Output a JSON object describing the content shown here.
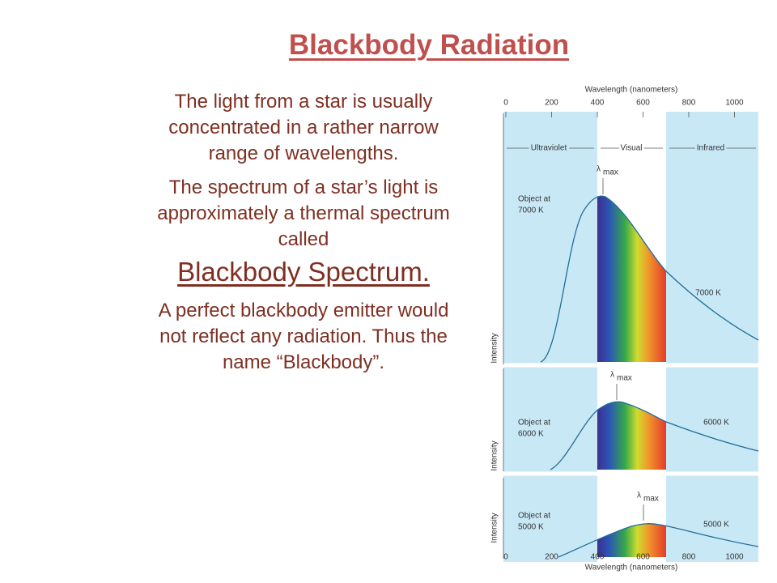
{
  "title": "Blackbody Radiation",
  "paragraphs": [
    {
      "text": "The light from a star is usually concentrated in a rather narrow range of wavelengths."
    },
    {
      "text": "The spectrum of a star’s light is approximately a thermal spectrum called",
      "emphasis": "Blackbody Spectrum."
    },
    {
      "text": "A perfect blackbody emitter would not reflect any radiation. Thus the name “Blackbody”."
    }
  ],
  "figure": {
    "axis_title": "Wavelength (nanometers)",
    "top_ticks": [
      0,
      200,
      400,
      600,
      800,
      1000
    ],
    "bottom_ticks": [
      0,
      200,
      400,
      600,
      800,
      1000
    ],
    "regions": [
      "Ultraviolet",
      "Visual",
      "Infrared"
    ],
    "lambda": "λ",
    "lambda_sub": "max",
    "y_label": "Intensity",
    "panels": [
      {
        "object_label": [
          "Object at",
          "7000 K"
        ],
        "curve_label": "7000 K"
      },
      {
        "object_label": [
          "Object at",
          "6000 K"
        ],
        "curve_label": "6000 K"
      },
      {
        "object_label": [
          "Object at",
          "5000 K"
        ],
        "curve_label": "5000 K"
      }
    ]
  }
}
